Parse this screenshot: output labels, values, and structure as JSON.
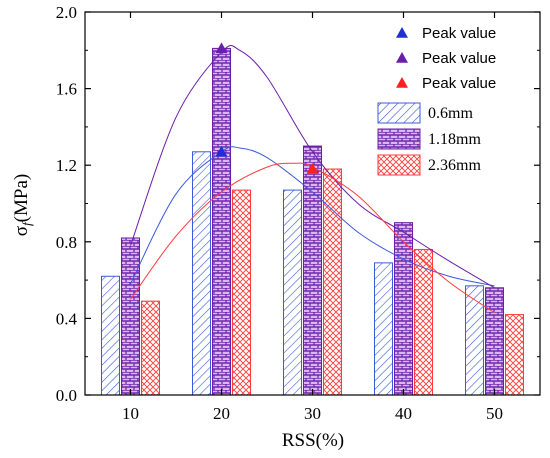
{
  "chart_data": {
    "type": "bar",
    "xlabel": "RSS(%)",
    "ylabel_main": "σ",
    "ylabel_sub": "f",
    "ylabel_unit": "(MPa)",
    "categories": [
      "10",
      "20",
      "30",
      "40",
      "50"
    ],
    "ylim": [
      0.0,
      2.0
    ],
    "yticks": [
      "0.0",
      "0.4",
      "0.8",
      "1.2",
      "1.6",
      "2.0"
    ],
    "ytick_values": [
      0.0,
      0.4,
      0.8,
      1.2,
      1.6,
      2.0
    ],
    "grid": false,
    "legend_position": "top-right",
    "series": [
      {
        "name": "0.6mm",
        "values": [
          0.62,
          1.27,
          1.07,
          0.69,
          0.57
        ],
        "color": "#3b5bdb",
        "pattern": "diagonal-hatch"
      },
      {
        "name": "1.18mm",
        "values": [
          0.82,
          1.81,
          1.3,
          0.9,
          0.56
        ],
        "color": "#6a1fa8",
        "pattern": "brick"
      },
      {
        "name": "2.36mm",
        "values": [
          0.49,
          1.07,
          1.18,
          0.76,
          0.42
        ],
        "color": "#ff3b3b",
        "pattern": "cross-hatch"
      }
    ],
    "peaks": [
      {
        "label": "Peak value",
        "x": "20",
        "y": 1.27,
        "color": "#1f2fd6"
      },
      {
        "label": "Peak value",
        "x": "20",
        "y": 1.81,
        "color": "#6a1fa8"
      },
      {
        "label": "Peak value",
        "x": "30",
        "y": 1.18,
        "color": "#ff2020"
      }
    ],
    "fit_curves": [
      {
        "series": "0.6mm",
        "color": "#3b5bdb",
        "points": [
          [
            10,
            0.58
          ],
          [
            15,
            1.05
          ],
          [
            20,
            1.27
          ],
          [
            22,
            1.29
          ],
          [
            25,
            1.24
          ],
          [
            30,
            1.06
          ],
          [
            35,
            0.85
          ],
          [
            40,
            0.71
          ],
          [
            45,
            0.62
          ],
          [
            50,
            0.57
          ]
        ]
      },
      {
        "series": "1.18mm",
        "color": "#6a1fa8",
        "points": [
          [
            10,
            0.78
          ],
          [
            15,
            1.45
          ],
          [
            20,
            1.79
          ],
          [
            22,
            1.8
          ],
          [
            25,
            1.66
          ],
          [
            30,
            1.27
          ],
          [
            35,
            1.0
          ],
          [
            40,
            0.85
          ],
          [
            45,
            0.7
          ],
          [
            50,
            0.56
          ]
        ]
      },
      {
        "series": "2.36mm",
        "color": "#ff3b3b",
        "points": [
          [
            10,
            0.5
          ],
          [
            15,
            0.83
          ],
          [
            20,
            1.06
          ],
          [
            25,
            1.19
          ],
          [
            28,
            1.21
          ],
          [
            30,
            1.19
          ],
          [
            35,
            1.04
          ],
          [
            40,
            0.8
          ],
          [
            45,
            0.59
          ],
          [
            50,
            0.43
          ]
        ]
      }
    ]
  }
}
